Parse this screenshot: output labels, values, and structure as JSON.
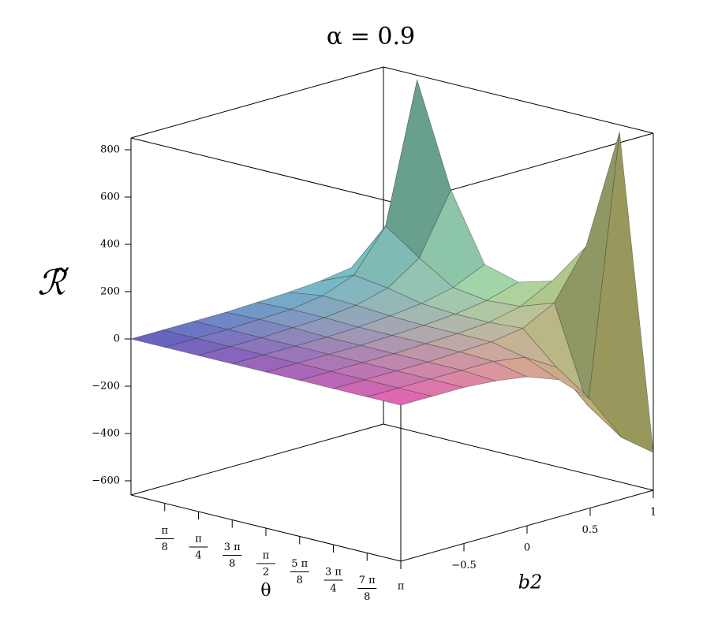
{
  "chart_data": {
    "type": "surface",
    "title": "α = 0.9",
    "xlabel": "θ",
    "ylabel": "b2",
    "zlabel": "ℛ̃",
    "x": [
      0,
      0.3927,
      0.7854,
      1.1781,
      1.5708,
      1.9635,
      2.3562,
      2.7489,
      3.1416
    ],
    "y": [
      -1,
      -0.75,
      -0.5,
      -0.25,
      0,
      0.25,
      0.5,
      0.75,
      1
    ],
    "z": [
      [
        0,
        0,
        0,
        0,
        5,
        10,
        20,
        40,
        60
      ],
      [
        0,
        0,
        0,
        5,
        10,
        30,
        80,
        250,
        830
      ],
      [
        0,
        0,
        0,
        5,
        10,
        25,
        60,
        150,
        400
      ],
      [
        0,
        0,
        0,
        0,
        5,
        15,
        30,
        60,
        120
      ],
      [
        0,
        0,
        0,
        0,
        5,
        10,
        20,
        40,
        80
      ],
      [
        0,
        0,
        0,
        0,
        5,
        10,
        20,
        50,
        120
      ],
      [
        0,
        0,
        0,
        0,
        5,
        10,
        30,
        100,
        300
      ],
      [
        0,
        0,
        0,
        0,
        0,
        -20,
        -100,
        -300,
        820
      ],
      [
        0,
        0,
        0,
        -10,
        -30,
        -80,
        -200,
        -400,
        -500
      ]
    ],
    "xlim": [
      0,
      3.1416
    ],
    "ylim": [
      -1,
      1
    ],
    "zlim": [
      -660,
      850
    ],
    "xticks": [
      {
        "value": 0.3927,
        "label": "π/8"
      },
      {
        "value": 0.7854,
        "label": "π/4"
      },
      {
        "value": 1.1781,
        "label": "3 π/8"
      },
      {
        "value": 1.5708,
        "label": "π/2"
      },
      {
        "value": 1.9635,
        "label": "5 π/8"
      },
      {
        "value": 2.3562,
        "label": "3 π/4"
      },
      {
        "value": 2.7489,
        "label": "7 π/8"
      },
      {
        "value": 3.1416,
        "label": "π"
      }
    ],
    "yticks": [
      {
        "value": -0.5,
        "label": "−0.5"
      },
      0,
      0.5,
      1
    ],
    "zticks": [
      {
        "value": -600,
        "label": "−600"
      },
      {
        "value": -400,
        "label": "−400"
      },
      {
        "value": -200,
        "label": "−200"
      },
      0,
      200,
      400,
      600,
      800
    ],
    "corner_colors": [
      "#5c5cc0",
      "#e65fb4",
      "#7fe6d8",
      "#dfe07a"
    ]
  }
}
